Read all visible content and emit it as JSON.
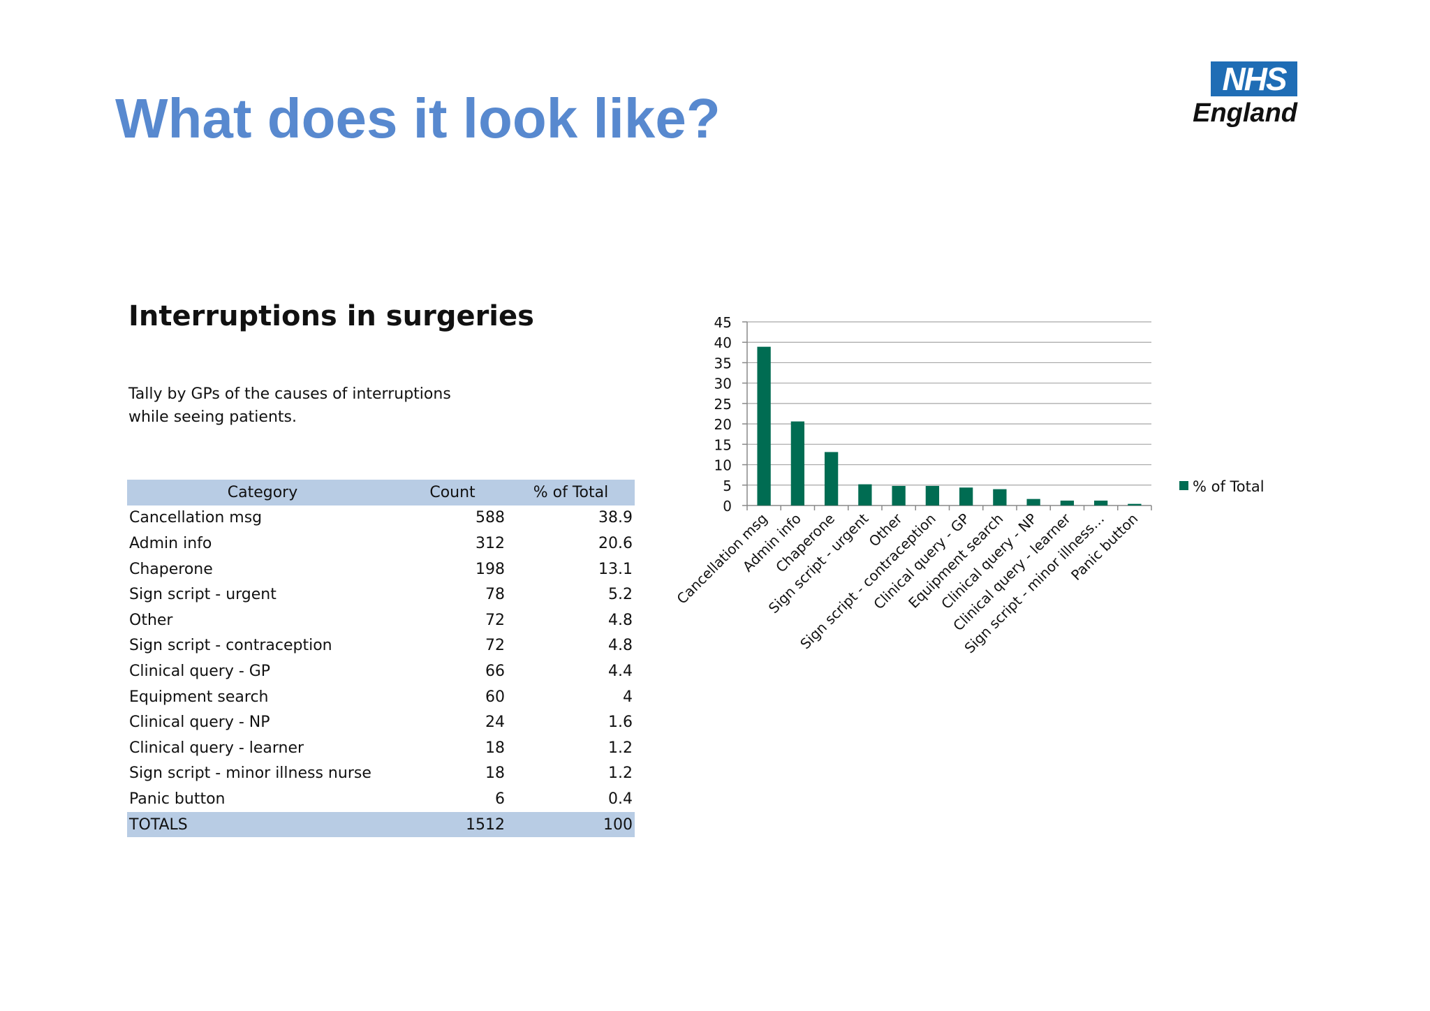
{
  "slide": {
    "title": "What does it look like?",
    "subtitle": "Interruptions in surgeries",
    "description_lines": [
      "Tally by GPs of the causes of interruptions",
      "while seeing patients."
    ]
  },
  "logo": {
    "top": "NHS",
    "bottom": "England"
  },
  "table": {
    "headers": [
      "Category",
      "Count",
      "% of Total"
    ],
    "rows": [
      [
        "Cancellation msg",
        "588",
        "38.9"
      ],
      [
        "Admin info",
        "312",
        "20.6"
      ],
      [
        "Chaperone",
        "198",
        "13.1"
      ],
      [
        "Sign script - urgent",
        "78",
        "5.2"
      ],
      [
        "Other",
        "72",
        "4.8"
      ],
      [
        "Sign script - contraception",
        "72",
        "4.8"
      ],
      [
        "Clinical query - GP",
        "66",
        "4.4"
      ],
      [
        "Equipment search",
        "60",
        "4"
      ],
      [
        "Clinical query - NP",
        "24",
        "1.6"
      ],
      [
        "Clinical query - learner",
        "18",
        "1.2"
      ],
      [
        "Sign script - minor illness nurse",
        "18",
        "1.2"
      ],
      [
        "Panic button",
        "6",
        "0.4"
      ]
    ],
    "totals": [
      "TOTALS",
      "1512",
      "100"
    ]
  },
  "colors": {
    "title": "#5889cf",
    "bar": "#006c52",
    "header_fill": "#b8cce4",
    "nhs_blue": "#1f6db5"
  },
  "chart_data": {
    "type": "bar",
    "categories": [
      "Cancellation msg",
      "Admin info",
      "Chaperone",
      "Sign script - urgent",
      "Other",
      "Sign script - contraception",
      "Clinical query - GP",
      "Equipment search",
      "Clinical query - NP",
      "Clinical query - learner",
      "Sign script - minor illness…",
      "Panic button"
    ],
    "series": [
      {
        "name": "% of Total",
        "values": [
          38.9,
          20.6,
          13.1,
          5.2,
          4.8,
          4.8,
          4.4,
          4,
          1.6,
          1.2,
          1.2,
          0.4
        ]
      }
    ],
    "yticks": [
      0,
      5,
      10,
      15,
      20,
      25,
      30,
      35,
      40,
      45
    ],
    "ylim": [
      0,
      45
    ],
    "grid": true,
    "legend": "right"
  }
}
